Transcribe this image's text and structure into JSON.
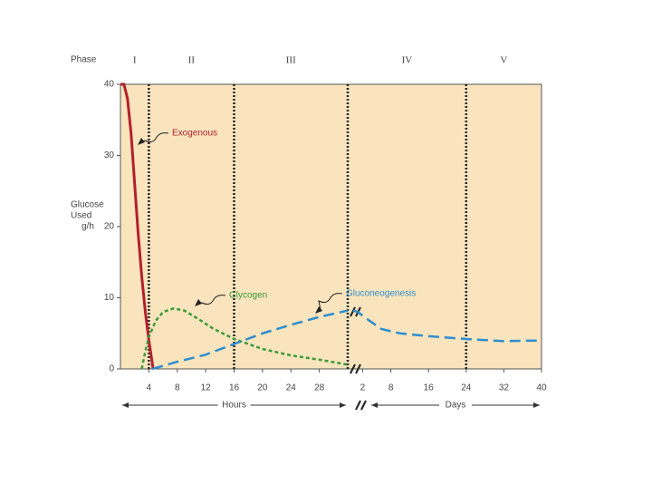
{
  "chart_data": {
    "type": "line",
    "phase_label": "Phase",
    "phases": [
      "I",
      "II",
      "III",
      "IV",
      "V"
    ],
    "dividers": [
      {
        "segment": 0,
        "x": 4
      },
      {
        "segment": 0,
        "x": 16
      },
      {
        "segment": 0,
        "x": 32
      },
      {
        "segment": 1,
        "x": 24
      }
    ],
    "y_label": [
      "Glucose",
      "Used",
      "g/h"
    ],
    "ylim": [
      0,
      40
    ],
    "yticks": [
      0,
      10,
      20,
      30,
      40
    ],
    "x_segments": [
      {
        "label": "Hours",
        "xlim": [
          0,
          32
        ],
        "xticks": [
          4,
          8,
          12,
          16,
          20,
          24,
          28
        ]
      },
      {
        "label": "Days",
        "xlim": [
          0,
          40
        ],
        "xticks": [
          2,
          8,
          16,
          24,
          32,
          40
        ]
      }
    ],
    "series": [
      {
        "name": "Exogenous",
        "color": "#b3202e",
        "dash": "none",
        "pieces": [
          {
            "segment": 0,
            "x": [
              0,
              0.5,
              1,
              1.5,
              2,
              2.5,
              3,
              3.5,
              4,
              4.6
            ],
            "values": [
              40,
              40,
              38,
              33,
              26,
              19,
              13,
              8,
              4,
              0
            ]
          }
        ]
      },
      {
        "name": "Glycogen",
        "color": "#3a9a3a",
        "dash": "4 3",
        "pieces": [
          {
            "segment": 0,
            "x": [
              3,
              3.5,
              4,
              5,
              6,
              7.5,
              9,
              11,
              13,
              16,
              20,
              24,
              28,
              32
            ],
            "values": [
              0,
              2.5,
              4.5,
              6.8,
              8,
              8.5,
              8.2,
              7,
              5.7,
              4.2,
              2.8,
              1.9,
              1.3,
              0.6
            ]
          }
        ]
      },
      {
        "name": "Gluconeogenesis",
        "color": "#2e8dcf",
        "dash": "12 6",
        "pieces": [
          {
            "segment": 0,
            "x": [
              4.5,
              8,
              12,
              16,
              20,
              24,
              28,
              32
            ],
            "values": [
              0,
              1,
              2,
              3.5,
              5,
              6.2,
              7.3,
              8.2
            ]
          },
          {
            "segment": 1,
            "x": [
              0,
              1,
              3,
              6,
              10,
              16,
              24,
              32,
              40
            ],
            "values": [
              8.2,
              8,
              7,
              5.6,
              5,
              4.6,
              4.2,
              3.9,
              4
            ]
          }
        ]
      }
    ]
  }
}
